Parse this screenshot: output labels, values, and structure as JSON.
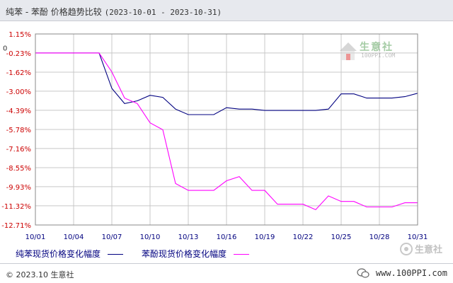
{
  "header": {
    "title_prefix": "纯苯 - 苯酚 价格趋势比较",
    "title_range": "(2023-10-01 - 2023-10-31)"
  },
  "footer": {
    "copyright": "© 2023.10 生意社",
    "site_url": "www.100PPI.com"
  },
  "watermark": {
    "brand": "生意社",
    "sub": "100PPI.COM",
    "corner_brand": "生意社"
  },
  "colors": {
    "benzene": "#000080",
    "phenol": "#ff00ff",
    "grid": "#c8c8c8",
    "axis_label": "#cc0000",
    "x_label": "#00007f"
  },
  "chart_data": {
    "type": "line",
    "title": "纯苯 - 苯酚 价格趋势比较(2023-10-01 - 2023-10-31)",
    "xlabel": "",
    "ylabel": "",
    "ylim": [
      -12.71,
      1.15
    ],
    "y_ticks": [
      "1.15%",
      "0",
      "-0.23%",
      "-1.62%",
      "-3.00%",
      "-4.39%",
      "-5.78%",
      "-7.16%",
      "-8.55%",
      "-9.93%",
      "-11.32%",
      "-12.71%"
    ],
    "y_tick_values": [
      1.15,
      0,
      -0.23,
      -1.62,
      -3.0,
      -4.39,
      -5.78,
      -7.16,
      -8.55,
      -9.93,
      -11.32,
      -12.71
    ],
    "x_ticks": [
      "10/01",
      "10/04",
      "10/07",
      "10/10",
      "10/13",
      "10/16",
      "10/19",
      "10/22",
      "10/25",
      "10/28",
      "10/31"
    ],
    "x_tick_days": [
      1,
      4,
      7,
      10,
      13,
      16,
      19,
      22,
      25,
      28,
      31
    ],
    "grid": true,
    "legend_position": "bottom",
    "series": [
      {
        "name": "纯苯现货价格变化幅度",
        "color": "#000080",
        "points": [
          [
            1,
            -0.23
          ],
          [
            6,
            -0.23
          ],
          [
            7,
            -2.8
          ],
          [
            8,
            -3.9
          ],
          [
            9,
            -3.7
          ],
          [
            10,
            -3.3
          ],
          [
            11,
            -3.45
          ],
          [
            12,
            -4.3
          ],
          [
            13,
            -4.7
          ],
          [
            14,
            -4.7
          ],
          [
            15,
            -4.7
          ],
          [
            16,
            -4.2
          ],
          [
            17,
            -4.3
          ],
          [
            18,
            -4.3
          ],
          [
            19,
            -4.4
          ],
          [
            20,
            -4.4
          ],
          [
            21,
            -4.4
          ],
          [
            22,
            -4.4
          ],
          [
            23,
            -4.4
          ],
          [
            24,
            -4.3
          ],
          [
            25,
            -3.2
          ],
          [
            26,
            -3.2
          ],
          [
            27,
            -3.5
          ],
          [
            28,
            -3.5
          ],
          [
            29,
            -3.5
          ],
          [
            30,
            -3.4
          ],
          [
            31,
            -3.15
          ]
        ]
      },
      {
        "name": "苯酚现货价格变化幅度",
        "color": "#ff00ff",
        "points": [
          [
            1,
            -0.23
          ],
          [
            6,
            -0.23
          ],
          [
            7,
            -1.6
          ],
          [
            8,
            -3.5
          ],
          [
            9,
            -3.9
          ],
          [
            10,
            -5.3
          ],
          [
            11,
            -5.8
          ],
          [
            12,
            -9.7
          ],
          [
            13,
            -10.2
          ],
          [
            14,
            -10.2
          ],
          [
            15,
            -10.2
          ],
          [
            16,
            -9.5
          ],
          [
            17,
            -9.2
          ],
          [
            18,
            -10.2
          ],
          [
            19,
            -10.2
          ],
          [
            20,
            -11.2
          ],
          [
            21,
            -11.2
          ],
          [
            22,
            -11.2
          ],
          [
            23,
            -11.6
          ],
          [
            24,
            -10.6
          ],
          [
            25,
            -11.0
          ],
          [
            26,
            -11.0
          ],
          [
            27,
            -11.4
          ],
          [
            28,
            -11.4
          ],
          [
            29,
            -11.4
          ],
          [
            30,
            -11.1
          ],
          [
            31,
            -11.1
          ]
        ]
      }
    ]
  }
}
